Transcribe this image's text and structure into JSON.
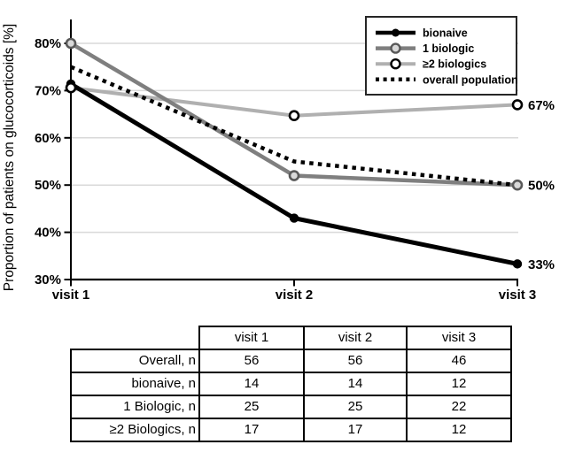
{
  "chart_data": {
    "type": "line",
    "title": "",
    "xlabel": "",
    "ylabel": "Proportion of patients on glucocorticoids [%]",
    "x_categories": [
      "visit 1",
      "visit 2",
      "visit 3"
    ],
    "y_ticks": [
      "80%",
      "70%",
      "60%",
      "50%",
      "40%",
      "30%"
    ],
    "y_tick_values": [
      80,
      70,
      60,
      50,
      40,
      30
    ],
    "ylim": [
      30,
      85
    ],
    "grid": true,
    "legend_position": "top-right",
    "colors": {
      "axis": "#000000",
      "gridline": "#d9d9d9",
      "legend_border": "#262626",
      "background": "#ffffff"
    },
    "series": [
      {
        "name": "bionaive",
        "values": [
          71.4,
          43,
          33.3
        ],
        "color": "#000000",
        "style": "solid",
        "marker": "filled-circle",
        "marker_fill": "#000000",
        "marker_stroke": "#000000",
        "line_width": 5,
        "z": 4,
        "end_label": "33%"
      },
      {
        "name": "1 biologic",
        "values": [
          80,
          52,
          50
        ],
        "color": "#7f7f7f",
        "style": "solid",
        "marker": "open-circle",
        "marker_fill": "#d9d9d9",
        "marker_stroke": "#595959",
        "line_width": 4.5,
        "z": 2,
        "end_label": "50%"
      },
      {
        "name": "≥2 biologics",
        "values": [
          70.6,
          64.7,
          67
        ],
        "color": "#b0b0b0",
        "style": "solid",
        "marker": "open-circle",
        "marker_fill": "#ffffff",
        "marker_stroke": "#000000",
        "line_width": 4,
        "z": 1,
        "end_label": "67%"
      },
      {
        "name": "overall population",
        "values": [
          75,
          55,
          50
        ],
        "color": "#000000",
        "style": "dotted",
        "marker": "none",
        "marker_fill": "",
        "marker_stroke": "",
        "line_width": 4.5,
        "z": 3,
        "end_label": ""
      }
    ]
  },
  "table": {
    "header": [
      "",
      "visit 1",
      "visit 2",
      "visit 3"
    ],
    "rows": [
      {
        "label": "Overall, n",
        "values": [
          "56",
          "56",
          "46"
        ]
      },
      {
        "label": "bionaive, n",
        "values": [
          "14",
          "14",
          "12"
        ]
      },
      {
        "label": "1 Biologic, n",
        "values": [
          "25",
          "25",
          "22"
        ]
      },
      {
        "label": "≥2 Biologics, n",
        "values": [
          "17",
          "17",
          "12"
        ]
      }
    ]
  }
}
